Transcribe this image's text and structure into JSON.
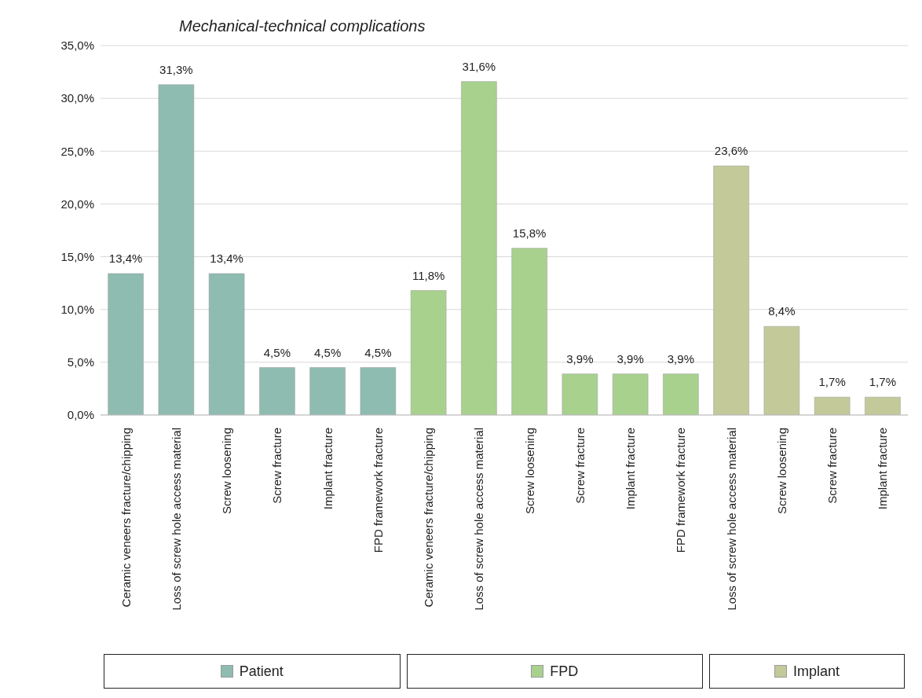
{
  "chart_data": {
    "type": "bar",
    "title": "Mechanical-technical complications",
    "categories": [
      "Ceramic veneers fracture/chipping",
      "Loss of screw hole access material",
      "Screw loosening",
      "Screw fracture",
      "Implant fracture",
      "FPD framework fracture",
      "Ceramic veneers fracture/chipping",
      "Loss of screw hole access material",
      "Screw loosening",
      "Screw fracture",
      "Implant fracture",
      "FPD framework fracture",
      "Loss of screw hole access material",
      "Screw loosening",
      "Screw fracture",
      "Implant fracture"
    ],
    "stacked": true,
    "series": [
      {
        "name": "Patient",
        "color": "#8fbcb0",
        "values": [
          13.4,
          31.3,
          13.4,
          4.5,
          4.5,
          4.5,
          null,
          null,
          null,
          null,
          null,
          null,
          null,
          null,
          null,
          null
        ],
        "value_labels": [
          "13,4%",
          "31,3%",
          "13,4%",
          "4,5%",
          "4,5%",
          "4,5%",
          null,
          null,
          null,
          null,
          null,
          null,
          null,
          null,
          null,
          null
        ]
      },
      {
        "name": "FPD",
        "color": "#a9d18e",
        "values": [
          null,
          null,
          null,
          null,
          null,
          null,
          11.8,
          31.6,
          15.8,
          3.9,
          3.9,
          3.9,
          null,
          null,
          null,
          null
        ],
        "value_labels": [
          null,
          null,
          null,
          null,
          null,
          null,
          "11,8%",
          "31,6%",
          "15,8%",
          "3,9%",
          "3,9%",
          "3,9%",
          null,
          null,
          null,
          null
        ]
      },
      {
        "name": "Implant",
        "color": "#c4c99a",
        "values": [
          null,
          null,
          null,
          null,
          null,
          null,
          null,
          null,
          null,
          null,
          null,
          null,
          23.6,
          8.4,
          1.7,
          1.7
        ],
        "value_labels": [
          null,
          null,
          null,
          null,
          null,
          null,
          null,
          null,
          null,
          null,
          null,
          null,
          "23,6%",
          "8,4%",
          "1,7%",
          "1,7%"
        ]
      }
    ],
    "ylim": [
      0,
      35
    ],
    "yticks": [
      {
        "value": 0,
        "label": "0,0%"
      },
      {
        "value": 5,
        "label": "5,0%"
      },
      {
        "value": 10,
        "label": "10,0%"
      },
      {
        "value": 15,
        "label": "15,0%"
      },
      {
        "value": 20,
        "label": "20,0%"
      },
      {
        "value": 25,
        "label": "25,0%"
      },
      {
        "value": 30,
        "label": "30,0%"
      },
      {
        "value": 35,
        "label": "35,0%"
      }
    ],
    "grid": "y",
    "legend": "bottom"
  }
}
